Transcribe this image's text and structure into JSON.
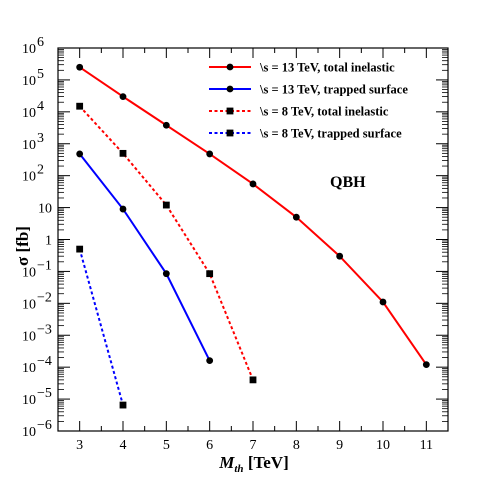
{
  "chart_data": {
    "type": "line",
    "title": "",
    "xlabel": {
      "main": "M",
      "sub": "th",
      "unit": "[TeV]"
    },
    "ylabel": "σ [fb]",
    "xlim": [
      2.5,
      11.5
    ],
    "ylim_log10": [
      -6,
      6
    ],
    "yscale": "log",
    "x_ticks": [
      3,
      4,
      5,
      6,
      7,
      8,
      9,
      10,
      11
    ],
    "y_tick_exponents": [
      -6,
      -5,
      -4,
      -3,
      -2,
      -1,
      0,
      1,
      2,
      3,
      4,
      5,
      6
    ],
    "y_tick_labels": {
      "-6": "10",
      "-5": "10",
      "-4": "10",
      "-3": "10",
      "-2": "10",
      "-1": "10",
      "0": "1",
      "1": "10",
      "2": "10",
      "3": "10",
      "4": "10",
      "5": "10",
      "6": "10"
    },
    "y_tick_superscripts": {
      "-6": "−6",
      "-5": "−5",
      "-4": "−4",
      "-3": "−3",
      "-2": "−2",
      "-1": "−1",
      "0": "",
      "1": "",
      "2": "2",
      "3": "3",
      "4": "4",
      "5": "5",
      "6": "6"
    },
    "annotation": "QBH",
    "grid": false,
    "legend_position": "top-right",
    "series": [
      {
        "name": "\\s = 13 TeV, total inelastic",
        "color": "#ff0000",
        "dash": "solid",
        "marker": "circle",
        "x": [
          3,
          4,
          5,
          6,
          7,
          8,
          9,
          10,
          11
        ],
        "y": [
          250000,
          30000,
          3800,
          480,
          55,
          5,
          0.3,
          0.011,
          0.00012
        ]
      },
      {
        "name": "\\s = 13 TeV, trapped surface",
        "color": "#0000ff",
        "dash": "solid",
        "marker": "circle",
        "x": [
          3,
          4,
          5,
          6
        ],
        "y": [
          480,
          9,
          0.085,
          0.00016
        ]
      },
      {
        "name": "\\s =  8 TeV, total inelastic",
        "color": "#ff0000",
        "dash": "dotted",
        "marker": "square",
        "x": [
          3,
          4,
          5,
          6,
          7
        ],
        "y": [
          15000,
          500,
          12,
          0.085,
          4e-05
        ]
      },
      {
        "name": "\\s =  8 TeV, trapped surface",
        "color": "#0000ff",
        "dash": "dotted",
        "marker": "square",
        "x": [
          3,
          4
        ],
        "y": [
          0.5,
          6.5e-06
        ]
      }
    ]
  }
}
